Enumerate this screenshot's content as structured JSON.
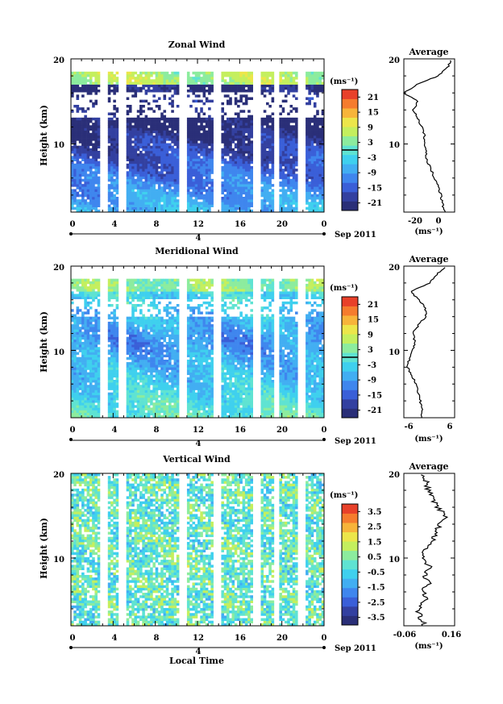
{
  "colorbar_colors": [
    "#2a2f78",
    "#3340a0",
    "#3a5fd8",
    "#3f86ee",
    "#42aef2",
    "#3fd0ee",
    "#5fe3d2",
    "#8cec9e",
    "#c4ef5e",
    "#ece64a",
    "#f7b43a",
    "#f57c2e",
    "#e8412a"
  ],
  "grid_colors": {
    "gap": "#ffffff",
    "contour": "#000000",
    "axis": "#000000"
  },
  "chart_data": [
    {
      "type": "heatmap",
      "title": "Zonal Wind",
      "ylabel": "Height (km)",
      "xlabel": "",
      "ylim": [
        2,
        20
      ],
      "xlim": [
        0,
        24
      ],
      "ytick_labels": [
        "20",
        "10"
      ],
      "xtick_labels": [
        "0",
        "4",
        "8",
        "12",
        "16",
        "20",
        "0"
      ],
      "day_label": "4",
      "date_label": "Sep 2011",
      "colorbar": {
        "unit_label": "(ms⁻¹)",
        "tick_labels": [
          "21",
          "15",
          "9",
          "3",
          "-3",
          "-9",
          "-15",
          "-21"
        ],
        "range": [
          -24,
          24
        ],
        "contour_level": 0
      },
      "profile": {
        "title": "Average",
        "ytick_labels": [
          "20",
          "10"
        ],
        "xtick_labels": [
          "-20",
          "0"
        ],
        "xlabel": "(ms⁻¹)",
        "xlim": [
          -30,
          7
        ],
        "height": [
          2,
          3,
          4,
          5,
          6,
          7,
          8,
          9,
          10,
          11,
          12,
          13,
          14,
          15,
          16,
          17,
          18,
          19,
          20
        ],
        "values": [
          0,
          -2,
          -3,
          -5,
          -8,
          -10,
          -13,
          -14,
          -15,
          -15,
          -17,
          -20,
          -23,
          -20,
          -30,
          -20,
          -5,
          2,
          5
        ]
      }
    },
    {
      "type": "heatmap",
      "title": "Meridional Wind",
      "ylabel": "Height (km)",
      "xlabel": "",
      "ylim": [
        2,
        20
      ],
      "xlim": [
        0,
        24
      ],
      "ytick_labels": [
        "20",
        "10"
      ],
      "xtick_labels": [
        "0",
        "4",
        "8",
        "12",
        "16",
        "20",
        "0"
      ],
      "day_label": "4",
      "date_label": "Sep 2011",
      "colorbar": {
        "unit_label": "(ms⁻¹)",
        "tick_labels": [
          "21",
          "15",
          "9",
          "3",
          "-3",
          "-9",
          "-15",
          "-21"
        ],
        "range": [
          -24,
          24
        ],
        "contour_level": 0
      },
      "profile": {
        "title": "Average",
        "ytick_labels": [
          "20",
          "10"
        ],
        "xtick_labels": [
          "-6",
          "6"
        ],
        "xlabel": "(ms⁻¹)",
        "xlim": [
          -7,
          7
        ],
        "height": [
          2,
          3,
          4,
          5,
          6,
          7,
          8,
          9,
          10,
          11,
          12,
          13,
          14,
          15,
          16,
          17,
          18,
          19,
          20
        ],
        "values": [
          -2,
          -2,
          -2.5,
          -3,
          -3.5,
          -5,
          -6,
          -5.5,
          -4.5,
          -4,
          -4.5,
          -3,
          -1,
          -1,
          -3,
          -5,
          0,
          2,
          5
        ]
      }
    },
    {
      "type": "heatmap",
      "title": "Vertical Wind",
      "ylabel": "Height (km)",
      "xlabel": "Local Time",
      "ylim": [
        2,
        20
      ],
      "xlim": [
        0,
        24
      ],
      "ytick_labels": [
        "20",
        "10"
      ],
      "xtick_labels": [
        "0",
        "4",
        "8",
        "12",
        "16",
        "20",
        "0"
      ],
      "day_label": "4",
      "date_label": "Sep 2011",
      "colorbar": {
        "unit_label": "(ms⁻¹)",
        "tick_labels": [
          "3.5",
          "2.5",
          "1.5",
          "0.5",
          "-0.5",
          "-1.5",
          "-2.5",
          "-3.5"
        ],
        "range": [
          -4,
          4
        ]
      },
      "profile": {
        "title": "Average",
        "ytick_labels": [
          "20",
          "10"
        ],
        "xtick_labels": [
          "-0.06",
          "0.16"
        ],
        "xlabel": "(ms⁻¹)",
        "xlim": [
          -0.09,
          0.18
        ],
        "height": [
          2,
          3,
          4,
          5,
          6,
          7,
          8,
          9,
          10,
          11,
          12,
          13,
          14,
          15,
          16,
          17,
          18,
          19,
          20
        ],
        "values": [
          0.02,
          0.0,
          -0.02,
          0.03,
          0.01,
          0.04,
          0.02,
          0.05,
          0.0,
          0.03,
          0.06,
          0.08,
          0.1,
          0.13,
          0.09,
          0.06,
          0.04,
          0.03,
          0.01
        ]
      }
    }
  ]
}
